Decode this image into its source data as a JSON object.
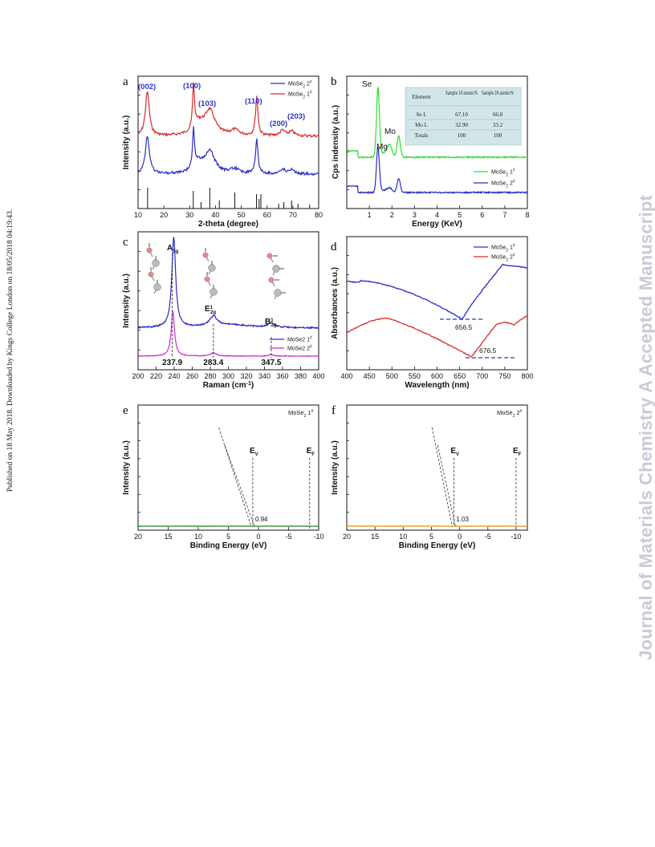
{
  "side_left_text": "Published on 18 May 2018. Downloaded by Kings College London on 18/05/2018 04:19:43.",
  "side_right_text": "Journal of Materials Chemistry A Accepted Manuscript",
  "colors": {
    "blue": "#2b2bc8",
    "red": "#d92b2b",
    "green": "#2ee02e",
    "magenta": "#d02cd0",
    "darkgreen": "#2e8b2e",
    "orange": "#e3961f",
    "annot_blue": "#2d35c9",
    "table_bg": "#d2e6ea"
  },
  "chart_data": [
    {
      "panel": "a",
      "type": "line",
      "xlabel": "2-theta (degree)",
      "ylabel": "Intensity (a.u.)",
      "xlim": [
        10,
        80
      ],
      "xticks": [
        10,
        20,
        30,
        40,
        50,
        60,
        70,
        80
      ],
      "series": [
        {
          "name": "MoSe2 2#",
          "legend_main": "MoSe",
          "legend_sub": "2",
          "legend_sup": "#",
          "legend_num": "2",
          "color": "#2b2bc8"
        },
        {
          "name": "MoSe2 1#",
          "legend_main": "MoSe",
          "legend_sub": "2",
          "legend_sup": "#",
          "legend_num": "1",
          "color": "#d92b2b"
        }
      ],
      "peaks": [
        {
          "label": "(002)",
          "x": 13.5
        },
        {
          "label": "(100)",
          "x": 31.5
        },
        {
          "label": "(103)",
          "x": 37.8
        },
        {
          "label": "(110)",
          "x": 56.0
        },
        {
          "label": "(200)",
          "x": 65.5
        },
        {
          "label": "(203)",
          "x": 69.5
        }
      ],
      "reference_lines": [
        13.7,
        31.4,
        34.4,
        37.8,
        41.5,
        47.5,
        55.9,
        56.9,
        57.6,
        64.5,
        66.5,
        69.5,
        72.0,
        76.5
      ]
    },
    {
      "panel": "b",
      "type": "line",
      "xlabel": "Energy (KeV)",
      "ylabel": "Cps indensity (a.u.)",
      "xlim": [
        0,
        8
      ],
      "xticks": [
        1,
        2,
        3,
        4,
        5,
        6,
        7,
        8
      ],
      "series": [
        {
          "name": "MoSe2 1#",
          "legend_main": "MoSe",
          "legend_sub": "2",
          "legend_sup": "#",
          "legend_num": "1",
          "color": "#2ee02e"
        },
        {
          "name": "MoSe2 2#",
          "legend_main": "MoSe",
          "legend_sub": "2",
          "legend_sup": "#",
          "legend_num": "2",
          "color": "#2b2bc8"
        }
      ],
      "peak_labels": [
        {
          "label": "Se",
          "x": 1.38
        },
        {
          "label": "Mg",
          "x": 1.9
        },
        {
          "label": "Mo",
          "x": 2.3
        }
      ],
      "table": {
        "headers": [
          "Element",
          "Sample 1# atomic%",
          "Sample 2# atomic%"
        ],
        "rows": [
          [
            "Se L",
            "67.10",
            "66.8"
          ],
          [
            "Mo L",
            "32.90",
            "33.2"
          ],
          [
            "Totals",
            "100",
            "100"
          ]
        ]
      }
    },
    {
      "panel": "c",
      "type": "line",
      "xlabel": "Raman (cm-1)",
      "xlabel_main": "Raman (cm",
      "xlabel_sup": "-1",
      "xlabel_end": ")",
      "ylabel": "Intensity (a.u.)",
      "xlim": [
        200,
        400
      ],
      "xticks": [
        200,
        220,
        240,
        260,
        280,
        300,
        320,
        340,
        360,
        380,
        400
      ],
      "series": [
        {
          "name": "MoSe2 1#",
          "legend_main": "MoSe2 1",
          "legend_sup": "#",
          "color": "#2b2bc8"
        },
        {
          "name": "MoSe2 2#",
          "legend_main": "MoSe2 2",
          "legend_sup": "#",
          "color": "#d02cd0"
        }
      ],
      "modes": [
        {
          "label": "A1g",
          "main": "A",
          "sub": "1g",
          "sup": "",
          "x": 237.9,
          "value_label": "237.9"
        },
        {
          "label": "E12g",
          "main": "E",
          "sub": "2g",
          "sup": "1",
          "x": 283.4,
          "value_label": "283.4"
        },
        {
          "label": "B12g",
          "main": "B",
          "sub": "2g",
          "sup": "1",
          "x": 347.5,
          "value_label": "347.5"
        }
      ]
    },
    {
      "panel": "d",
      "type": "line",
      "xlabel": "Wavelength (nm)",
      "ylabel": "Absorbances (a.u.)",
      "xlim": [
        400,
        800
      ],
      "xticks": [
        400,
        450,
        500,
        550,
        600,
        650,
        700,
        750,
        800
      ],
      "series": [
        {
          "name": "MoSe2 1#",
          "legend_main": "MoSe",
          "legend_sub": "2",
          "legend_sup": "#",
          "legend_num": "1",
          "color": "#2b2bc8"
        },
        {
          "name": "MoSe2 2#",
          "legend_main": "MoSe",
          "legend_sub": "2",
          "legend_sup": "#",
          "legend_num": "2",
          "color": "#d92b2b"
        }
      ],
      "minima": [
        {
          "x": 656.5,
          "label": "656.5"
        },
        {
          "x": 676.5,
          "label": "676.5"
        }
      ]
    },
    {
      "panel": "e",
      "type": "line",
      "title_main": "MoSe",
      "title_sub": "2",
      "title_num": " 1",
      "title_sup": "#",
      "xlabel": "Binding Energy (eV)",
      "ylabel": "Intensity (a.u.)",
      "xlim": [
        20,
        -10
      ],
      "xticks": [
        20,
        15,
        10,
        5,
        0,
        -5,
        -10
      ],
      "series": [
        {
          "name": "MoSe2 1#",
          "color": "#2e8b2e"
        }
      ],
      "ev": 0.94,
      "ev_label": "0.94",
      "ef": -8.5,
      "ev_main": "E",
      "ev_sub": "V",
      "ef_main": "E",
      "ef_sub": "F"
    },
    {
      "panel": "f",
      "type": "line",
      "title_main": "MoSe",
      "title_sub": "2",
      "title_num": " 2",
      "title_sup": "#",
      "xlabel": "Binding Energy (eV)",
      "ylabel": "Intensity (a.u.)",
      "xlim": [
        20,
        -12
      ],
      "xticks": [
        20,
        15,
        10,
        5,
        0,
        -5,
        -10
      ],
      "series": [
        {
          "name": "MoSe2 2#",
          "color": "#e3961f"
        }
      ],
      "ev": 1.03,
      "ev_label": "1.03",
      "ef": -10,
      "ev_main": "E",
      "ev_sub": "V",
      "ef_main": "E",
      "ef_sub": "F"
    }
  ]
}
